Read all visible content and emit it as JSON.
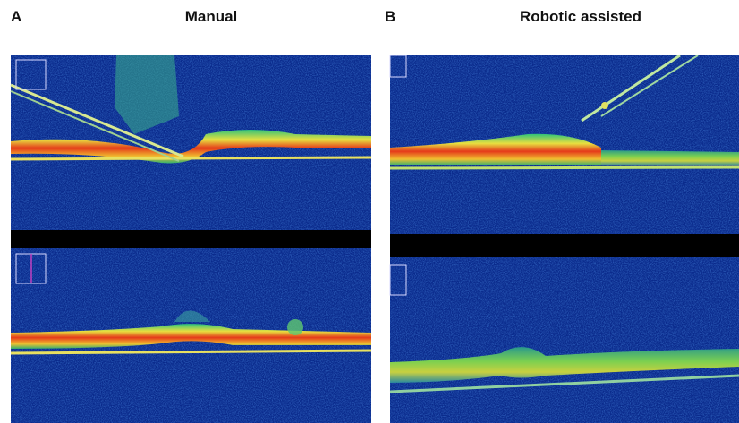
{
  "panels": [
    {
      "letter": "A",
      "title": "Manual"
    },
    {
      "letter": "B",
      "title": "Robotic assisted"
    }
  ]
}
